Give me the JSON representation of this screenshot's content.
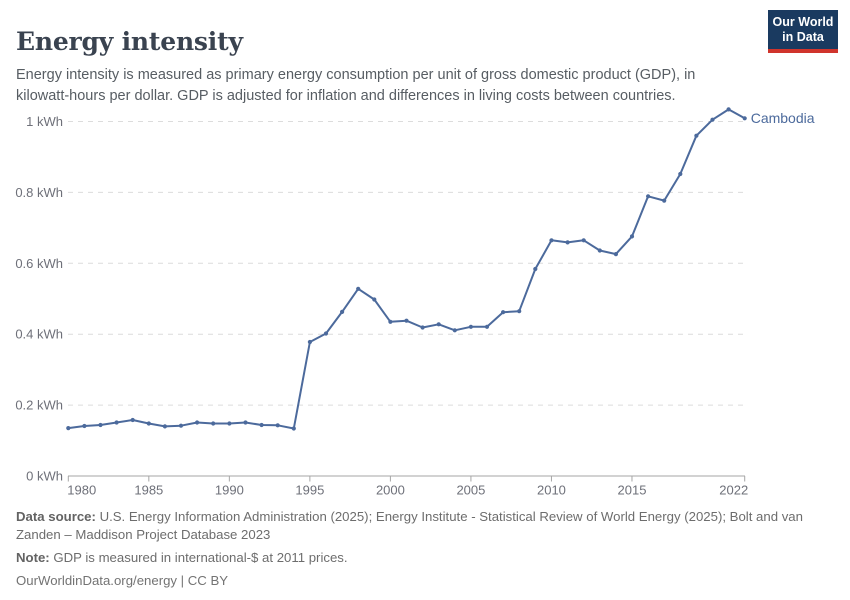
{
  "header": {
    "title": "Energy intensity",
    "subtitle": "Energy intensity is measured as primary energy consumption per unit of gross domestic product (GDP), in kilowatt-hours per dollar. GDP is adjusted for inflation and differences in living costs between countries.",
    "logo": {
      "line1": "Our World",
      "line2": "in Data",
      "navy": "#1a3a60",
      "red": "#d0342c"
    }
  },
  "chart_data": {
    "type": "line",
    "title": "Energy intensity",
    "unit": "kWh",
    "xlabel": "",
    "ylabel": "",
    "x_min": 1980,
    "x_max": 2022,
    "ylim": [
      0,
      1.08
    ],
    "grid": "dashed horizontal",
    "legend_position": "end-of-line label",
    "x_ticks": [
      1980,
      1985,
      1990,
      1995,
      2000,
      2005,
      2010,
      2015,
      2022
    ],
    "y_ticks": [
      {
        "value": 0,
        "label": "0 kWh"
      },
      {
        "value": 0.2,
        "label": "0.2 kWh"
      },
      {
        "value": 0.4,
        "label": "0.4 kWh"
      },
      {
        "value": 0.6,
        "label": "0.6 kWh"
      },
      {
        "value": 0.8,
        "label": "0.8 kWh"
      },
      {
        "value": 1,
        "label": "1 kWh"
      }
    ],
    "years": [
      1980,
      1981,
      1982,
      1983,
      1984,
      1985,
      1986,
      1987,
      1988,
      1989,
      1990,
      1991,
      1992,
      1993,
      1994,
      1995,
      1996,
      1997,
      1998,
      1999,
      2000,
      2001,
      2002,
      2003,
      2004,
      2005,
      2006,
      2007,
      2008,
      2009,
      2010,
      2011,
      2012,
      2013,
      2014,
      2015,
      2016,
      2017,
      2018,
      2019,
      2020,
      2021,
      2022
    ],
    "series": [
      {
        "name": "Cambodia",
        "color": "#4C6A9C",
        "values": [
          0.135,
          0.141,
          0.144,
          0.151,
          0.158,
          0.148,
          0.14,
          0.142,
          0.151,
          0.148,
          0.148,
          0.151,
          0.144,
          0.143,
          0.134,
          0.378,
          0.402,
          0.463,
          0.528,
          0.498,
          0.435,
          0.438,
          0.419,
          0.428,
          0.411,
          0.421,
          0.421,
          0.462,
          0.465,
          0.584,
          0.665,
          0.659,
          0.665,
          0.636,
          0.626,
          0.676,
          0.789,
          0.777,
          0.852,
          0.96,
          1.005,
          1.034,
          1.009
        ]
      }
    ]
  },
  "footer": {
    "sources_label": "Data source:",
    "sources_text": "U.S. Energy Information Administration (2025); Energy Institute - Statistical Review of World Energy (2025); Bolt and van\nZanden – Maddison Project Database 2023",
    "note_label": "Note:",
    "note_text": "GDP is measured in international-$ at 2011 prices.",
    "credit_link": "OurWorldinData.org/energy",
    "credit_suffix": " | CC BY"
  }
}
